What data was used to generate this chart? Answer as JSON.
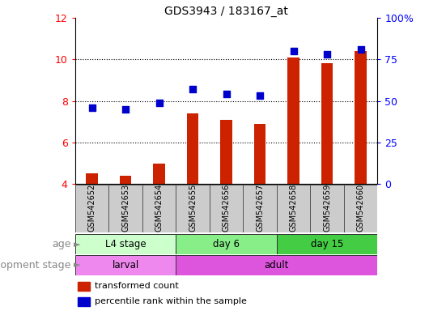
{
  "title": "GDS3943 / 183167_at",
  "samples": [
    "GSM542652",
    "GSM542653",
    "GSM542654",
    "GSM542655",
    "GSM542656",
    "GSM542657",
    "GSM542658",
    "GSM542659",
    "GSM542660"
  ],
  "transformed_count": [
    4.5,
    4.4,
    5.0,
    7.4,
    7.1,
    6.9,
    10.1,
    9.8,
    10.4
  ],
  "percentile_rank": [
    46,
    45,
    49,
    57,
    54,
    53,
    80,
    78,
    81
  ],
  "left_ylim": [
    4,
    12
  ],
  "right_ylim": [
    0,
    100
  ],
  "left_yticks": [
    4,
    6,
    8,
    10,
    12
  ],
  "right_yticks": [
    0,
    25,
    50,
    75,
    100
  ],
  "right_yticklabels": [
    "0",
    "25",
    "50",
    "75",
    "100%"
  ],
  "bar_color": "#cc2200",
  "dot_color": "#0000cc",
  "age_groups": [
    {
      "label": "L4 stage",
      "start": 0,
      "end": 3,
      "color": "#ccffcc"
    },
    {
      "label": "day 6",
      "start": 3,
      "end": 6,
      "color": "#88ee88"
    },
    {
      "label": "day 15",
      "start": 6,
      "end": 9,
      "color": "#44cc44"
    }
  ],
  "dev_groups": [
    {
      "label": "larval",
      "start": 0,
      "end": 3,
      "color": "#ee88ee"
    },
    {
      "label": "adult",
      "start": 3,
      "end": 9,
      "color": "#dd55dd"
    }
  ],
  "age_label": "age",
  "dev_label": "development stage",
  "legend_items": [
    {
      "color": "#cc2200",
      "label": "transformed count"
    },
    {
      "color": "#0000cc",
      "label": "percentile rank within the sample"
    }
  ],
  "sample_box_color": "#cccccc",
  "bar_width": 0.35
}
